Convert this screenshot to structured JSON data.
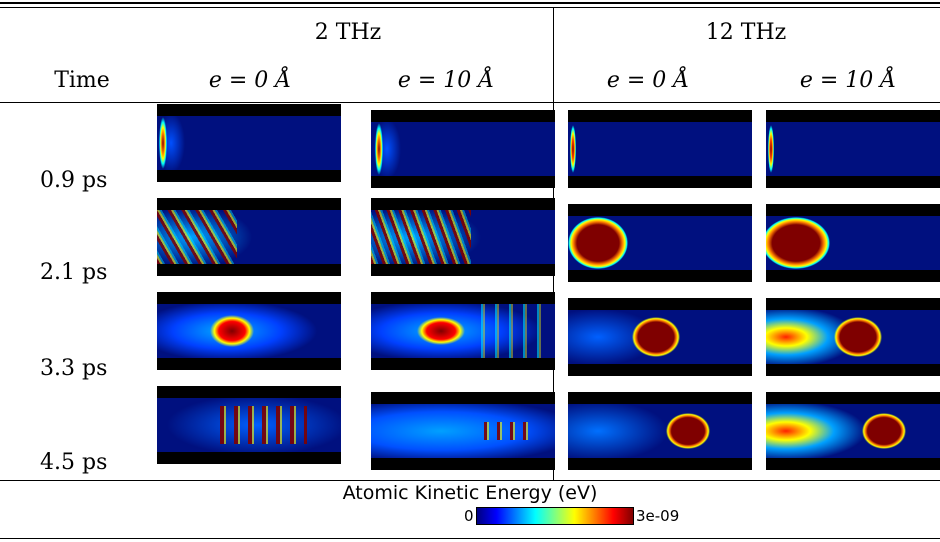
{
  "header": {
    "group_left": "2 THz",
    "group_right": "12 THz",
    "time_col": "Time",
    "e0": "e = 0 Å",
    "e10": "e = 10 Å"
  },
  "rows": [
    {
      "time": "0.9 ps"
    },
    {
      "time": "2.1 ps"
    },
    {
      "time": "3.3 ps"
    },
    {
      "time": "4.5 ps"
    }
  ],
  "colorbar": {
    "title": "Atomic Kinetic Energy (eV)",
    "min": "0",
    "max": "3e-09",
    "colormap": "jet",
    "colors": [
      "#00007f",
      "#0000ff",
      "#0080ff",
      "#00ffff",
      "#80ff80",
      "#ffff00",
      "#ff8000",
      "#ff0000",
      "#7f0000"
    ]
  },
  "colors": {
    "background": "#00107f",
    "hot": "#7f0000",
    "border": "#000000"
  }
}
